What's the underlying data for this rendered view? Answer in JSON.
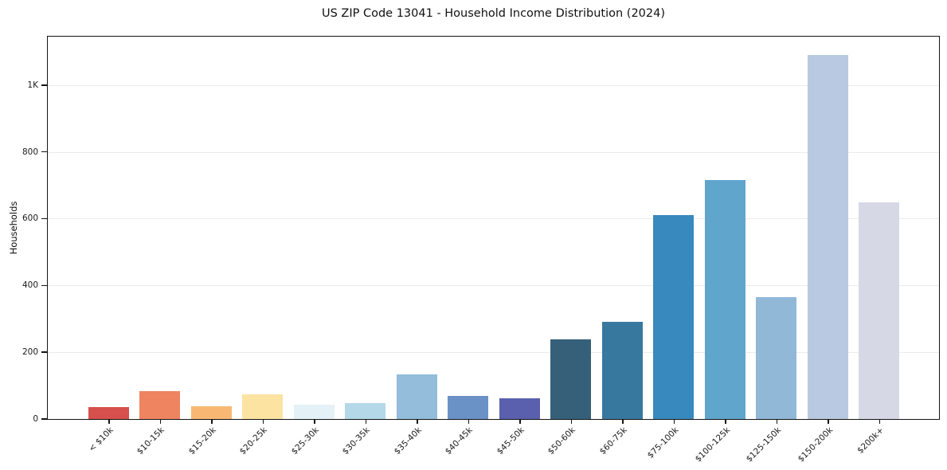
{
  "figure": {
    "title": "US ZIP Code 13041 - Household Income Distribution (2024)"
  },
  "chart_data": {
    "type": "bar",
    "title": "US ZIP Code 13041 - Household Income Distribution (2024)",
    "xlabel": "",
    "ylabel": "Households",
    "categories": [
      "< $10k",
      "$10-15k",
      "$15-20k",
      "$20-25k",
      "$25-30k",
      "$30-35k",
      "$35-40k",
      "$40-45k",
      "$45-50k",
      "$50-60k",
      "$60-75k",
      "$75-100k",
      "$100-125k",
      "$125-150k",
      "$150-200k",
      "$200k+"
    ],
    "values": [
      36,
      84,
      38,
      74,
      43,
      47,
      134,
      70,
      61,
      239,
      290,
      610,
      715,
      366,
      1090,
      648
    ],
    "bar_colors": [
      "#d6504e",
      "#ef8461",
      "#f8b873",
      "#fce3a2",
      "#e4f1f6",
      "#b4d8e7",
      "#93bddb",
      "#6b92c6",
      "#5a5fae",
      "#36607a",
      "#37789f",
      "#3889bd",
      "#5fa5cc",
      "#92b8d8",
      "#b9c9e1",
      "#d7d8e6"
    ],
    "ylim": [
      0,
      1145
    ],
    "yticks": [
      {
        "value": 0,
        "label": "0"
      },
      {
        "value": 200,
        "label": "200"
      },
      {
        "value": 400,
        "label": "400"
      },
      {
        "value": 600,
        "label": "600"
      },
      {
        "value": 800,
        "label": "800"
      },
      {
        "value": 1000,
        "label": "1K"
      }
    ],
    "grid": "horizontal",
    "legend": "none",
    "axis_color": "#141414",
    "gridline_color": "#ebebeb"
  }
}
